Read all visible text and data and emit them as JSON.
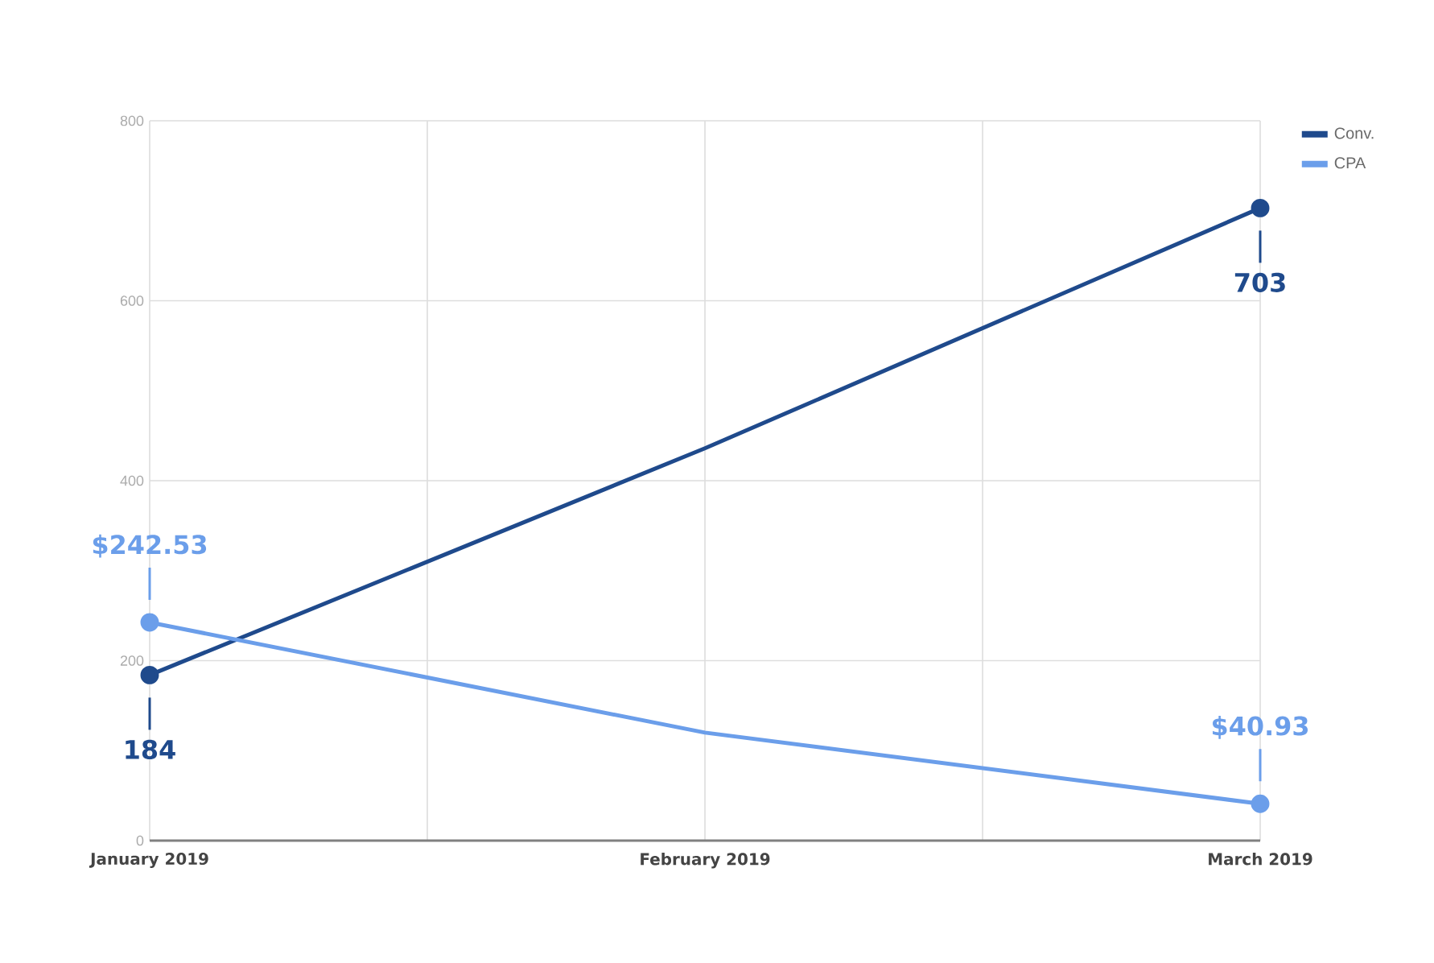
{
  "chart_data": {
    "type": "line",
    "categories": [
      "January 2019",
      "February 2019",
      "March 2019"
    ],
    "series": [
      {
        "name": "Conv.",
        "color": "#1f4a8c",
        "values": [
          184,
          436,
          703
        ],
        "value_labels": [
          "184",
          null,
          "703"
        ]
      },
      {
        "name": "CPA",
        "color": "#6b9eea",
        "values": [
          242.53,
          120,
          40.93
        ],
        "value_labels": [
          "$242.53",
          null,
          "$40.93"
        ]
      }
    ],
    "ylim": [
      0,
      800
    ],
    "yticks": [
      0,
      200,
      400,
      600,
      800
    ],
    "grid": true,
    "legend": "top right",
    "marker": "circle"
  }
}
